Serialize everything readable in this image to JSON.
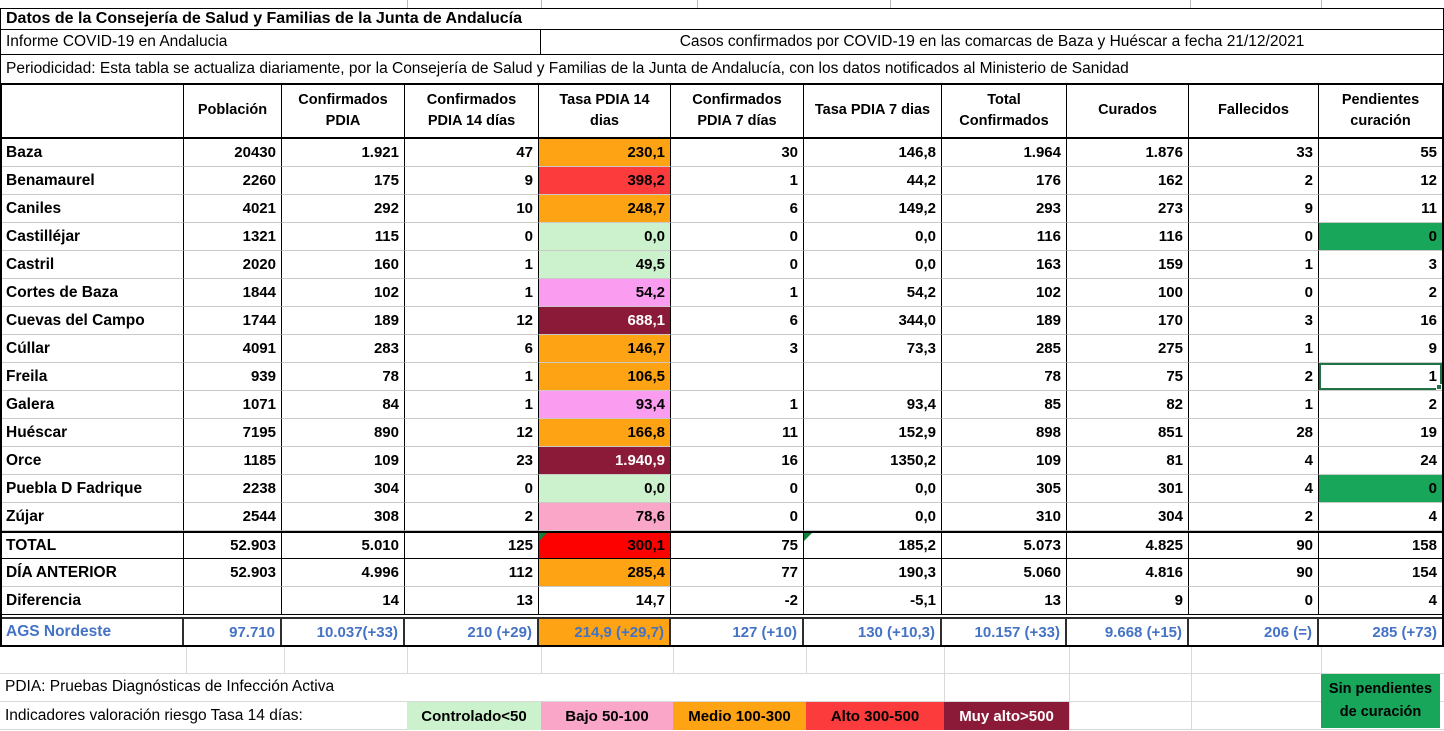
{
  "header": {
    "title": "Datos de la Consejería de Salud y Familias de la Junta de Andalucía",
    "subtitle_left": "Informe COVID-19 en Andalucia",
    "subtitle_right": "Casos confirmados por COVID-19 en las comarcas de Baza y Huéscar a fecha 21/12/2021",
    "periodicity": "Periodicidad: Esta tabla se actualiza diariamente, por la Consejería de Salud y Familias de la Junta de Andalucía, con los datos notificados al Ministerio de Sanidad"
  },
  "table": {
    "columns": [
      {
        "key": "poblacion",
        "lines": [
          "Población"
        ]
      },
      {
        "key": "confirmados-pdia",
        "lines": [
          "Confirmados",
          "PDIA"
        ]
      },
      {
        "key": "confirmados-pdia-14d",
        "lines": [
          "Confirmados",
          "PDIA 14 días"
        ]
      },
      {
        "key": "tasa-pdia-14d",
        "lines": [
          "Tasa PDIA 14",
          "dias"
        ]
      },
      {
        "key": "confirmados-pdia-7d",
        "lines": [
          "Confirmados",
          "PDIA 7 días"
        ]
      },
      {
        "key": "tasa-pdia-7d",
        "lines": [
          "Tasa PDIA 7 dias"
        ]
      },
      {
        "key": "total-confirmados",
        "lines": [
          "Total",
          "Confirmados"
        ]
      },
      {
        "key": "curados",
        "lines": [
          "Curados"
        ]
      },
      {
        "key": "fallecidos",
        "lines": [
          "Fallecidos"
        ]
      },
      {
        "key": "pendientes-curacion",
        "lines": [
          "Pendientes",
          "curación"
        ]
      }
    ],
    "rows": [
      {
        "label": "Baza",
        "values": [
          "20430",
          "1.921",
          "47",
          "230,1",
          "30",
          "146,8",
          "1.964",
          "1.876",
          "33",
          "55"
        ],
        "tasa14": "orange"
      },
      {
        "label": "Benamaurel",
        "values": [
          "2260",
          "175",
          "9",
          "398,2",
          "1",
          "44,2",
          "176",
          "162",
          "2",
          "12"
        ],
        "tasa14": "red"
      },
      {
        "label": "Caniles",
        "values": [
          "4021",
          "292",
          "10",
          "248,7",
          "6",
          "149,2",
          "293",
          "273",
          "9",
          "11"
        ],
        "tasa14": "orange"
      },
      {
        "label": "Castilléjar",
        "values": [
          "1321",
          "115",
          "0",
          "0,0",
          "0",
          "0,0",
          "116",
          "116",
          "0",
          "0"
        ],
        "tasa14": "lgreen",
        "pend_green": true
      },
      {
        "label": "Castril",
        "values": [
          "2020",
          "160",
          "1",
          "49,5",
          "0",
          "0,0",
          "163",
          "159",
          "1",
          "3"
        ],
        "tasa14": "lgreen"
      },
      {
        "label": "Cortes de Baza",
        "values": [
          "1844",
          "102",
          "1",
          "54,2",
          "1",
          "54,2",
          "102",
          "100",
          "0",
          "2"
        ],
        "tasa14": "vpink"
      },
      {
        "label": "Cuevas del Campo",
        "values": [
          "1744",
          "189",
          "12",
          "688,1",
          "6",
          "344,0",
          "189",
          "170",
          "3",
          "16"
        ],
        "tasa14": "maroon"
      },
      {
        "label": "Cúllar",
        "values": [
          "4091",
          "283",
          "6",
          "146,7",
          "3",
          "73,3",
          "285",
          "275",
          "1",
          "9"
        ],
        "tasa14": "orange"
      },
      {
        "label": "Freila",
        "values": [
          "939",
          "78",
          "1",
          "106,5",
          "",
          "",
          "78",
          "75",
          "2",
          "1"
        ],
        "tasa14": "orange",
        "selected_pend": true
      },
      {
        "label": "Galera",
        "values": [
          "1071",
          "84",
          "1",
          "93,4",
          "1",
          "93,4",
          "85",
          "82",
          "1",
          "2"
        ],
        "tasa14": "vpink"
      },
      {
        "label": "Huéscar",
        "values": [
          "7195",
          "890",
          "12",
          "166,8",
          "11",
          "152,9",
          "898",
          "851",
          "28",
          "19"
        ],
        "tasa14": "orange"
      },
      {
        "label": "Orce",
        "values": [
          "1185",
          "109",
          "23",
          "1.940,9",
          "16",
          "1350,2",
          "109",
          "81",
          "4",
          "24"
        ],
        "tasa14": "maroon"
      },
      {
        "label": "Puebla D Fadrique",
        "values": [
          "2238",
          "304",
          "0",
          "0,0",
          "0",
          "0,0",
          "305",
          "301",
          "4",
          "0"
        ],
        "tasa14": "lgreen",
        "pend_green": true
      },
      {
        "label": "Zújar",
        "values": [
          "2544",
          "308",
          "2",
          "78,6",
          "0",
          "0,0",
          "310",
          "304",
          "2",
          "4"
        ],
        "tasa14": "rpink"
      },
      {
        "label": "TOTAL",
        "values": [
          "52.903",
          "5.010",
          "125",
          "300,1",
          "75",
          "185,2",
          "5.073",
          "4.825",
          "90",
          "158"
        ],
        "tasa14": "brightred",
        "row_class": "total",
        "triangles": [
          3,
          5
        ]
      },
      {
        "label": "DÍA ANTERIOR",
        "values": [
          "52.903",
          "4.996",
          "112",
          "285,4",
          "77",
          "190,3",
          "5.060",
          "4.816",
          "90",
          "154"
        ],
        "tasa14": "orange"
      },
      {
        "label": "Diferencia",
        "values": [
          "",
          "14",
          "13",
          "14,7",
          "-2",
          "-5,1",
          "13",
          "9",
          "0",
          "4"
        ],
        "row_class": "diff"
      },
      {
        "label": "AGS Nordeste",
        "values": [
          "97.710",
          "10.037(+33)",
          "210 (+29)",
          "214,9 (+29,7)",
          "127 (+10)",
          "130 (+10,3)",
          "10.157 (+33)",
          "9.668 (+15)",
          "206 (=)",
          "285 (+73)"
        ],
        "tasa14": "orange",
        "row_class": "ags"
      }
    ]
  },
  "footer": {
    "pdia_note": "PDIA: Pruebas Diagnósticas de Infección Activa",
    "legend_label": "Indicadores valoración riesgo Tasa 14 días:",
    "legend": [
      {
        "label": "Controlado<50",
        "color": "#CCF2CD",
        "text": "#000000"
      },
      {
        "label": "Bajo 50-100",
        "color": "#F9A6C8",
        "text": "#000000"
      },
      {
        "label": "Medio 100-300",
        "color": "#FEA313",
        "text": "#000000"
      },
      {
        "label": "Alto 300-500",
        "color": "#FB3B3C",
        "text": "#000000"
      },
      {
        "label": "Muy alto>500",
        "color": "#8B1A39",
        "text": "#ffffff"
      }
    ],
    "no_pending_label_line1": "Sin pendientes",
    "no_pending_label_line2": "de curación"
  },
  "colors": {
    "orange": "#FEA313",
    "light_green": "#CCF2CD",
    "pink_violet": "#FA9CEF",
    "pink_rose": "#F9A6C8",
    "red": "#FB3B3C",
    "bright_red": "#FD0000",
    "dark_red": "#8B1A39",
    "green": "#17A65A",
    "summary_blue": "#4472C4",
    "selection_green": "#217346"
  }
}
